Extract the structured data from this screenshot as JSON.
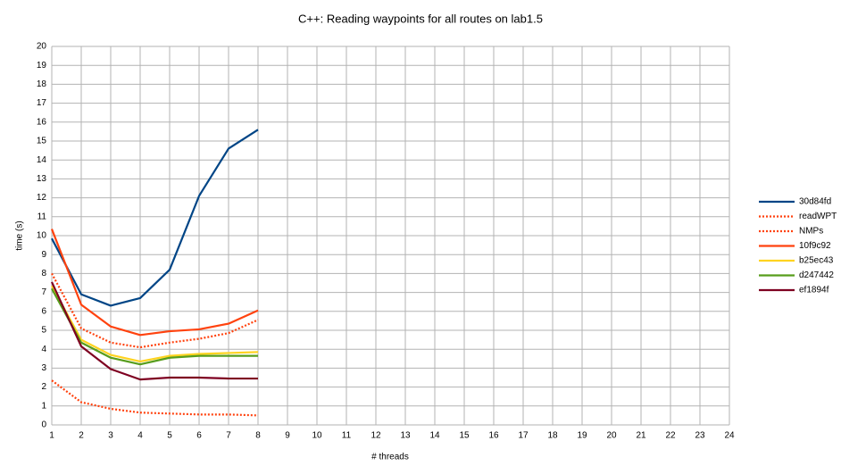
{
  "chart_data": {
    "type": "line",
    "title": "C++: Reading waypoints for all routes on lab1.5",
    "x_label": "# threads",
    "y_label": "time (s)",
    "x": [
      1,
      2,
      3,
      4,
      5,
      6,
      7,
      8
    ],
    "series": [
      {
        "name": "30d84fd",
        "color": "#004586",
        "line_style": "solid",
        "values": [
          9.85,
          6.9,
          6.3,
          6.7,
          8.2,
          12.1,
          14.6,
          15.6
        ]
      },
      {
        "name": "readWPT",
        "color": "#ff420e",
        "line_style": "dotted",
        "values": [
          8.0,
          5.1,
          4.35,
          4.1,
          4.35,
          4.55,
          4.85,
          5.55
        ]
      },
      {
        "name": "NMPs",
        "color": "#ff420e",
        "line_style": "dotted",
        "values": [
          2.35,
          1.2,
          0.85,
          0.65,
          0.6,
          0.55,
          0.55,
          0.5
        ]
      },
      {
        "name": "10f9c92",
        "color": "#ff420e",
        "line_style": "solid",
        "values": [
          10.35,
          6.35,
          5.2,
          4.75,
          4.95,
          5.05,
          5.35,
          6.05
        ]
      },
      {
        "name": "b25ec43",
        "color": "#ffd320",
        "line_style": "solid",
        "values": [
          7.35,
          4.5,
          3.7,
          3.35,
          3.65,
          3.75,
          3.8,
          3.85
        ]
      },
      {
        "name": "d247442",
        "color": "#579d1c",
        "line_style": "solid",
        "values": [
          7.2,
          4.35,
          3.55,
          3.2,
          3.55,
          3.65,
          3.65,
          3.65
        ]
      },
      {
        "name": "ef1894f",
        "color": "#7e0021",
        "line_style": "solid",
        "values": [
          7.55,
          4.15,
          2.95,
          2.4,
          2.5,
          2.5,
          2.45,
          2.45
        ]
      }
    ],
    "xlim": [
      1,
      24
    ],
    "xticks": [
      1,
      2,
      3,
      4,
      5,
      6,
      7,
      8,
      9,
      10,
      11,
      12,
      13,
      14,
      15,
      16,
      17,
      18,
      19,
      20,
      21,
      22,
      23,
      24
    ],
    "ylim": [
      0,
      20
    ],
    "yticks": [
      0,
      1,
      2,
      3,
      4,
      5,
      6,
      7,
      8,
      9,
      10,
      11,
      12,
      13,
      14,
      15,
      16,
      17,
      18,
      19,
      20
    ],
    "grid": true,
    "legend": "right"
  }
}
